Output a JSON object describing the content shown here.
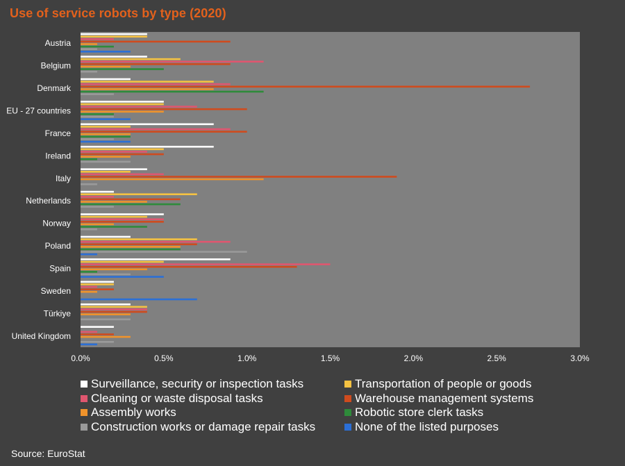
{
  "chart_data": {
    "type": "bar",
    "orientation": "horizontal",
    "title": "Use of service robots by type (2020)",
    "source": "Source: EuroStat",
    "categories": [
      "Austria",
      "Belgium",
      "Denmark",
      "EU - 27 countries",
      "France",
      "Ireland",
      "Italy",
      "Netherlands",
      "Norway",
      "Poland",
      "Spain",
      "Sweden",
      "Türkiye",
      "United Kingdom"
    ],
    "xlim": [
      0,
      3.0
    ],
    "xticks": [
      "0.0%",
      "0.5%",
      "1.0%",
      "1.5%",
      "2.0%",
      "2.5%",
      "3.0%"
    ],
    "xtick_values": [
      0,
      0.5,
      1.0,
      1.5,
      2.0,
      2.5,
      3.0
    ],
    "grid": false,
    "legend_position": "bottom",
    "series": [
      {
        "name": "Surveillance, security or inspection tasks",
        "color": "#ffffff",
        "values": [
          0.4,
          0.4,
          0.3,
          0.5,
          0.8,
          0.8,
          0.4,
          0.2,
          0.5,
          0.3,
          0.9,
          0.2,
          0.3,
          0.2
        ]
      },
      {
        "name": "Transportation of people or goods",
        "color": "#f5c242",
        "values": [
          0.4,
          0.6,
          0.8,
          0.5,
          0.3,
          0.5,
          0.3,
          0.7,
          0.4,
          0.7,
          0.5,
          0.2,
          0.4,
          0.0
        ]
      },
      {
        "name": "Cleaning or waste disposal tasks",
        "color": "#e0566f",
        "values": [
          0.2,
          1.1,
          0.9,
          0.7,
          0.9,
          0.4,
          0.5,
          0.2,
          0.5,
          0.9,
          1.5,
          0.1,
          0.4,
          0.1
        ]
      },
      {
        "name": "Warehouse management systems",
        "color": "#cf4b1e",
        "values": [
          0.9,
          0.9,
          2.7,
          1.0,
          1.0,
          0.5,
          1.9,
          0.6,
          0.5,
          0.7,
          1.3,
          0.2,
          0.4,
          0.2
        ]
      },
      {
        "name": "Assembly works",
        "color": "#f0932b",
        "values": [
          0.1,
          0.3,
          0.8,
          0.5,
          0.3,
          0.3,
          1.1,
          0.4,
          0.2,
          0.6,
          0.4,
          0.1,
          0.3,
          0.3
        ]
      },
      {
        "name": "Robotic store clerk tasks",
        "color": "#2e8b3a",
        "values": [
          0.2,
          0.5,
          1.1,
          0.2,
          0.3,
          0.1,
          0.0,
          0.6,
          0.4,
          0.6,
          0.1,
          0.0,
          0.0,
          0.0
        ]
      },
      {
        "name": "Construction works or damage repair tasks",
        "color": "#9a9a9a",
        "values": [
          0.1,
          0.1,
          0.2,
          0.2,
          0.2,
          0.3,
          0.1,
          0.2,
          0.1,
          1.0,
          0.3,
          0.0,
          0.3,
          0.2
        ]
      },
      {
        "name": "None of the listed purposes",
        "color": "#2b6fd6",
        "values": [
          0.3,
          0.0,
          0.0,
          0.3,
          0.3,
          0.0,
          0.0,
          0.0,
          0.0,
          0.1,
          0.5,
          0.7,
          0.0,
          0.1
        ]
      }
    ]
  }
}
